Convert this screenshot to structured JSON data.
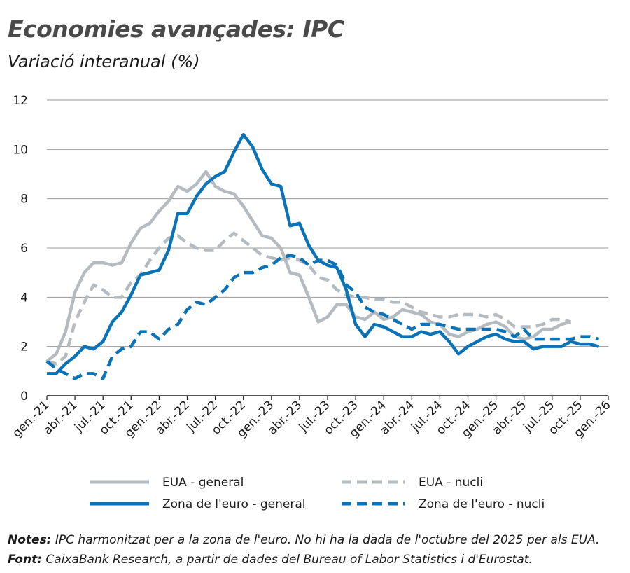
{
  "chart_data": {
    "type": "line",
    "title": "Economies avançades: IPC",
    "subtitle": "Variació interanual (%)",
    "ylim": [
      0,
      12
    ],
    "yticks": [
      "0",
      "2",
      "4",
      "6",
      "8",
      "10",
      "12"
    ],
    "xtick_labels": [
      "gen.-21",
      "abr.-21",
      "jul.-21",
      "oct.-21",
      "gen.-22",
      "abr.-22",
      "jul.-22",
      "oct.-22",
      "gen.-23",
      "abr.-23",
      "jul.-23",
      "oct.-23",
      "gen.-24",
      "abr.-24",
      "jul.-24",
      "oct.-24",
      "gen.-25",
      "abr.-25",
      "jul.-25",
      "oct.-25",
      "gen.-26"
    ],
    "x_months": [
      "2021-01",
      "2021-02",
      "2021-03",
      "2021-04",
      "2021-05",
      "2021-06",
      "2021-07",
      "2021-08",
      "2021-09",
      "2021-10",
      "2021-11",
      "2021-12",
      "2022-01",
      "2022-02",
      "2022-03",
      "2022-04",
      "2022-05",
      "2022-06",
      "2022-07",
      "2022-08",
      "2022-09",
      "2022-10",
      "2022-11",
      "2022-12",
      "2023-01",
      "2023-02",
      "2023-03",
      "2023-04",
      "2023-05",
      "2023-06",
      "2023-07",
      "2023-08",
      "2023-09",
      "2023-10",
      "2023-11",
      "2023-12",
      "2024-01",
      "2024-02",
      "2024-03",
      "2024-04",
      "2024-05",
      "2024-06",
      "2024-07",
      "2024-08",
      "2024-09",
      "2024-10",
      "2024-11",
      "2024-12",
      "2025-01",
      "2025-02",
      "2025-03",
      "2025-04",
      "2025-05",
      "2025-06",
      "2025-07",
      "2025-08",
      "2025-09",
      "2025-10",
      "2025-11",
      "2025-12"
    ],
    "grid": true,
    "series": [
      {
        "name": "EUA - general",
        "color": "#b5bcc1",
        "style": "solid",
        "values": [
          1.4,
          1.7,
          2.6,
          4.2,
          5.0,
          5.4,
          5.4,
          5.3,
          5.4,
          6.2,
          6.8,
          7.0,
          7.5,
          7.9,
          8.5,
          8.3,
          8.6,
          9.1,
          8.5,
          8.3,
          8.2,
          7.7,
          7.1,
          6.5,
          6.4,
          6.0,
          5.0,
          4.9,
          4.0,
          3.0,
          3.2,
          3.7,
          3.7,
          3.2,
          3.1,
          3.4,
          3.1,
          3.2,
          3.5,
          3.4,
          3.3,
          3.0,
          2.9,
          2.5,
          2.4,
          2.6,
          2.7,
          2.9,
          3.0,
          2.8,
          2.4,
          2.3,
          2.4,
          2.7,
          2.7,
          2.9,
          3.0,
          null,
          null,
          null
        ]
      },
      {
        "name": "EUA - nucli",
        "color": "#b5bcc1",
        "style": "dashed",
        "values": [
          1.4,
          1.3,
          1.6,
          3.0,
          3.8,
          4.5,
          4.3,
          4.0,
          4.0,
          4.6,
          4.9,
          5.5,
          6.0,
          6.4,
          6.5,
          6.2,
          6.0,
          5.9,
          5.9,
          6.3,
          6.6,
          6.3,
          6.0,
          5.7,
          5.6,
          5.5,
          5.6,
          5.5,
          5.3,
          4.8,
          4.7,
          4.3,
          4.1,
          4.0,
          4.0,
          3.9,
          3.9,
          3.8,
          3.8,
          3.6,
          3.4,
          3.3,
          3.2,
          3.2,
          3.3,
          3.3,
          3.3,
          3.2,
          3.3,
          3.1,
          2.8,
          2.8,
          2.8,
          2.9,
          3.1,
          3.1,
          3.0,
          null,
          null,
          null
        ]
      },
      {
        "name": "Zona de l'euro - general",
        "color": "#0a73b7",
        "style": "solid",
        "values": [
          0.9,
          0.9,
          1.3,
          1.6,
          2.0,
          1.9,
          2.2,
          3.0,
          3.4,
          4.1,
          4.9,
          5.0,
          5.1,
          5.9,
          7.4,
          7.4,
          8.1,
          8.6,
          8.9,
          9.1,
          9.9,
          10.6,
          10.1,
          9.2,
          8.6,
          8.5,
          6.9,
          7.0,
          6.1,
          5.5,
          5.3,
          5.2,
          4.3,
          2.9,
          2.4,
          2.9,
          2.8,
          2.6,
          2.4,
          2.4,
          2.6,
          2.5,
          2.6,
          2.2,
          1.7,
          2.0,
          2.2,
          2.4,
          2.5,
          2.3,
          2.2,
          2.2,
          1.9,
          2.0,
          2.0,
          2.0,
          2.2,
          2.1,
          2.1,
          2.0
        ]
      },
      {
        "name": "Zona de l'euro - nucli",
        "color": "#0a73b7",
        "style": "dashed",
        "values": [
          1.4,
          1.1,
          0.9,
          0.7,
          0.9,
          0.9,
          0.7,
          1.6,
          1.9,
          2.0,
          2.6,
          2.6,
          2.3,
          2.7,
          2.9,
          3.5,
          3.8,
          3.7,
          4.0,
          4.3,
          4.8,
          5.0,
          5.0,
          5.2,
          5.3,
          5.6,
          5.7,
          5.6,
          5.3,
          5.5,
          5.5,
          5.3,
          4.5,
          4.2,
          3.6,
          3.4,
          3.3,
          3.1,
          2.9,
          2.7,
          2.9,
          2.9,
          2.9,
          2.8,
          2.7,
          2.7,
          2.7,
          2.7,
          2.7,
          2.6,
          2.4,
          2.7,
          2.3,
          2.3,
          2.3,
          2.3,
          2.3,
          2.4,
          2.4,
          2.3
        ]
      }
    ],
    "legend": [
      "EUA - general",
      "EUA - nucli",
      "Zona de l'euro - general",
      "Zona de l'euro - nucli"
    ]
  },
  "notes_label": "Notes:",
  "notes_text": "IPC harmonitzat per a la zona de l'euro. No hi ha la dada de l'octubre del 2025 per als EUA.",
  "source_label": "Font:",
  "source_text": "CaixaBank Research, a partir de dades del Bureau of Labor Statistics i d'Eurostat."
}
